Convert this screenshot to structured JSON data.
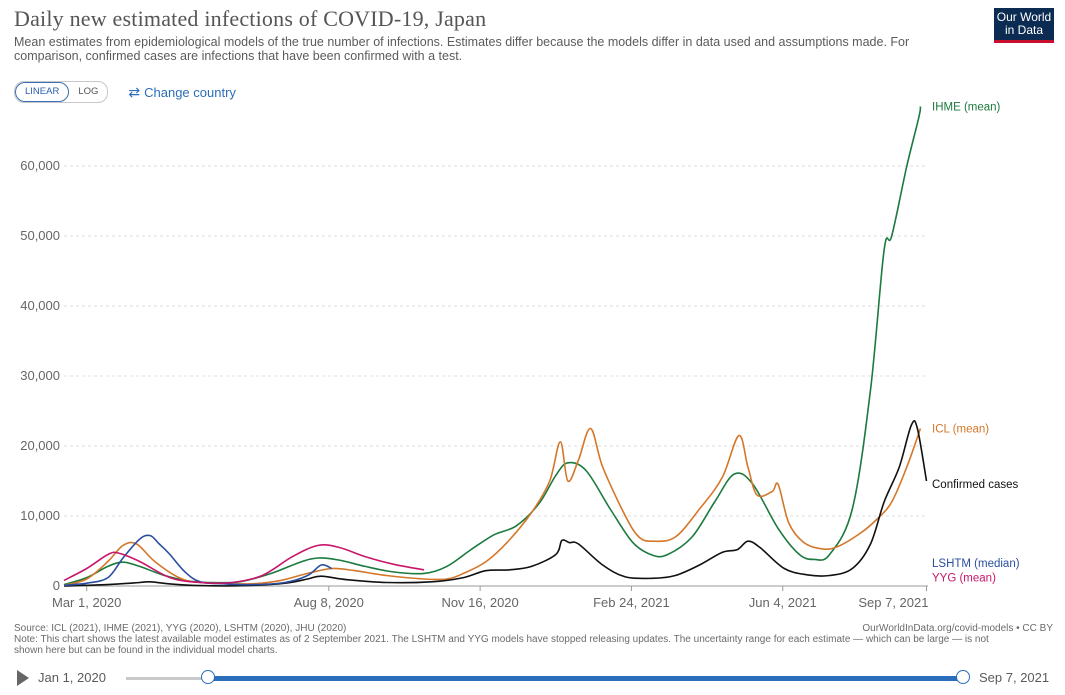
{
  "header": {
    "title": "Daily new estimated infections of COVID-19, Japan",
    "subtitle": "Mean estimates from epidemiological models of the true number of infections. Estimates differ because the models differ in data used and assumptions made. For comparison, confirmed cases are infections that have been confirmed with a test.",
    "logo_line1": "Our World",
    "logo_line2": "in Data"
  },
  "controls": {
    "linear_label": "LINEAR",
    "log_label": "LOG",
    "change_country_label": "Change country"
  },
  "chart_data": {
    "type": "line",
    "ylim": [
      0,
      68000
    ],
    "yticks": [
      0,
      10000,
      20000,
      30000,
      40000,
      50000,
      60000
    ],
    "ytick_labels": [
      "0",
      "10,000",
      "20,000",
      "30,000",
      "40,000",
      "50,000",
      "60,000"
    ],
    "xlim": [
      "2020-02-15",
      "2021-09-08"
    ],
    "xticks": [
      "2020-03-01",
      "2020-08-08",
      "2020-11-16",
      "2021-02-24",
      "2021-06-04",
      "2021-09-07"
    ],
    "xtick_labels": [
      "Mar 1, 2020",
      "Aug 8, 2020",
      "Nov 16, 2020",
      "Feb 24, 2021",
      "Jun 4, 2021",
      "Sep 7, 2021"
    ],
    "grid": true,
    "series": [
      {
        "name": "IHME (mean)",
        "color": "#1b7a3e",
        "points": [
          [
            "2020-02-15",
            200
          ],
          [
            "2020-03-01",
            1200
          ],
          [
            "2020-03-15",
            2800
          ],
          [
            "2020-03-25",
            3400
          ],
          [
            "2020-04-05",
            2800
          ],
          [
            "2020-04-20",
            1600
          ],
          [
            "2020-05-05",
            800
          ],
          [
            "2020-05-20",
            500
          ],
          [
            "2020-06-10",
            600
          ],
          [
            "2020-07-01",
            1800
          ],
          [
            "2020-07-20",
            3400
          ],
          [
            "2020-08-01",
            4000
          ],
          [
            "2020-08-15",
            3700
          ],
          [
            "2020-09-01",
            2800
          ],
          [
            "2020-09-20",
            2000
          ],
          [
            "2020-10-10",
            1800
          ],
          [
            "2020-10-25",
            2800
          ],
          [
            "2020-11-10",
            5200
          ],
          [
            "2020-11-25",
            7300
          ],
          [
            "2020-12-10",
            8600
          ],
          [
            "2020-12-25",
            11800
          ],
          [
            "2021-01-05",
            15800
          ],
          [
            "2021-01-13",
            17600
          ],
          [
            "2021-01-25",
            16500
          ],
          [
            "2021-02-10",
            11000
          ],
          [
            "2021-02-25",
            6200
          ],
          [
            "2021-03-10",
            4400
          ],
          [
            "2021-03-20",
            4500
          ],
          [
            "2021-04-05",
            7000
          ],
          [
            "2021-04-20",
            12000
          ],
          [
            "2021-05-03",
            16000
          ],
          [
            "2021-05-15",
            14600
          ],
          [
            "2021-06-01",
            8200
          ],
          [
            "2021-06-15",
            4500
          ],
          [
            "2021-06-25",
            3800
          ],
          [
            "2021-07-05",
            4500
          ],
          [
            "2021-07-20",
            11000
          ],
          [
            "2021-08-01",
            28000
          ],
          [
            "2021-08-10",
            48000
          ],
          [
            "2021-08-15",
            50000
          ],
          [
            "2021-08-25",
            60000
          ],
          [
            "2021-09-02",
            67000
          ],
          [
            "2021-09-03",
            68500
          ]
        ]
      },
      {
        "name": "ICL (mean)",
        "color": "#d4772a",
        "points": [
          [
            "2020-02-15",
            100
          ],
          [
            "2020-03-01",
            1000
          ],
          [
            "2020-03-15",
            3500
          ],
          [
            "2020-03-25",
            5800
          ],
          [
            "2020-04-03",
            6000
          ],
          [
            "2020-04-15",
            3500
          ],
          [
            "2020-05-01",
            1200
          ],
          [
            "2020-05-15",
            500
          ],
          [
            "2020-06-15",
            300
          ],
          [
            "2020-07-05",
            700
          ],
          [
            "2020-07-25",
            1800
          ],
          [
            "2020-08-10",
            2500
          ],
          [
            "2020-08-25",
            2200
          ],
          [
            "2020-09-15",
            1500
          ],
          [
            "2020-10-10",
            1000
          ],
          [
            "2020-10-25",
            1000
          ],
          [
            "2020-11-05",
            1800
          ],
          [
            "2020-11-20",
            3500
          ],
          [
            "2020-12-05",
            6500
          ],
          [
            "2020-12-20",
            10500
          ],
          [
            "2021-01-01",
            15000
          ],
          [
            "2021-01-08",
            20600
          ],
          [
            "2021-01-13",
            15000
          ],
          [
            "2021-01-20",
            18000
          ],
          [
            "2021-01-28",
            22500
          ],
          [
            "2021-02-05",
            17000
          ],
          [
            "2021-02-20",
            10000
          ],
          [
            "2021-03-01",
            7000
          ],
          [
            "2021-03-10",
            6400
          ],
          [
            "2021-03-25",
            7000
          ],
          [
            "2021-04-10",
            11000
          ],
          [
            "2021-04-25",
            15500
          ],
          [
            "2021-05-06",
            21500
          ],
          [
            "2021-05-12",
            17000
          ],
          [
            "2021-05-18",
            13000
          ],
          [
            "2021-05-28",
            13500
          ],
          [
            "2021-06-01",
            14500
          ],
          [
            "2021-06-08",
            9000
          ],
          [
            "2021-06-18",
            6200
          ],
          [
            "2021-06-30",
            5300
          ],
          [
            "2021-07-10",
            5600
          ],
          [
            "2021-07-25",
            7500
          ],
          [
            "2021-08-05",
            9500
          ],
          [
            "2021-08-15",
            12000
          ],
          [
            "2021-08-25",
            17000
          ],
          [
            "2021-09-03",
            22500
          ]
        ]
      },
      {
        "name": "Confirmed cases",
        "color": "#111111",
        "points": [
          [
            "2020-02-15",
            0
          ],
          [
            "2020-03-15",
            200
          ],
          [
            "2020-04-05",
            500
          ],
          [
            "2020-04-12",
            600
          ],
          [
            "2020-04-25",
            300
          ],
          [
            "2020-05-15",
            50
          ],
          [
            "2020-06-15",
            50
          ],
          [
            "2020-07-10",
            400
          ],
          [
            "2020-07-25",
            1000
          ],
          [
            "2020-08-03",
            1400
          ],
          [
            "2020-08-20",
            900
          ],
          [
            "2020-09-15",
            500
          ],
          [
            "2020-10-15",
            600
          ],
          [
            "2020-11-05",
            1200
          ],
          [
            "2020-11-20",
            2200
          ],
          [
            "2020-12-05",
            2300
          ],
          [
            "2020-12-20",
            2800
          ],
          [
            "2021-01-05",
            4500
          ],
          [
            "2021-01-09",
            6500
          ],
          [
            "2021-01-14",
            6200
          ],
          [
            "2021-01-20",
            6000
          ],
          [
            "2021-02-05",
            3000
          ],
          [
            "2021-02-20",
            1300
          ],
          [
            "2021-03-10",
            1100
          ],
          [
            "2021-03-25",
            1500
          ],
          [
            "2021-04-10",
            3000
          ],
          [
            "2021-04-25",
            4800
          ],
          [
            "2021-05-05",
            5200
          ],
          [
            "2021-05-12",
            6400
          ],
          [
            "2021-05-20",
            5500
          ],
          [
            "2021-06-05",
            2500
          ],
          [
            "2021-06-20",
            1600
          ],
          [
            "2021-07-05",
            1500
          ],
          [
            "2021-07-20",
            2500
          ],
          [
            "2021-08-01",
            6000
          ],
          [
            "2021-08-10",
            12000
          ],
          [
            "2021-08-20",
            17000
          ],
          [
            "2021-08-28",
            23000
          ],
          [
            "2021-09-01",
            22500
          ],
          [
            "2021-09-07",
            15000
          ]
        ]
      },
      {
        "name": "LSHTM (median)",
        "color": "#2a4ea0",
        "points": [
          [
            "2020-02-15",
            100
          ],
          [
            "2020-03-01",
            400
          ],
          [
            "2020-03-15",
            1200
          ],
          [
            "2020-03-25",
            4000
          ],
          [
            "2020-04-05",
            6700
          ],
          [
            "2020-04-12",
            7200
          ],
          [
            "2020-04-18",
            6000
          ],
          [
            "2020-04-25",
            4500
          ],
          [
            "2020-05-05",
            2000
          ],
          [
            "2020-05-15",
            600
          ],
          [
            "2020-06-01",
            300
          ],
          [
            "2020-06-20",
            200
          ],
          [
            "2020-07-10",
            500
          ],
          [
            "2020-07-25",
            1500
          ],
          [
            "2020-08-03",
            3000
          ],
          [
            "2020-08-10",
            2500
          ]
        ]
      },
      {
        "name": "YYG (mean)",
        "color": "#c8176b",
        "points": [
          [
            "2020-02-15",
            800
          ],
          [
            "2020-03-01",
            2500
          ],
          [
            "2020-03-15",
            4500
          ],
          [
            "2020-03-22",
            4700
          ],
          [
            "2020-04-05",
            3500
          ],
          [
            "2020-04-25",
            1200
          ],
          [
            "2020-05-15",
            500
          ],
          [
            "2020-06-05",
            500
          ],
          [
            "2020-06-25",
            1500
          ],
          [
            "2020-07-15",
            4200
          ],
          [
            "2020-08-01",
            5800
          ],
          [
            "2020-08-15",
            5500
          ],
          [
            "2020-09-01",
            4200
          ],
          [
            "2020-09-20",
            3100
          ],
          [
            "2020-10-10",
            2300
          ]
        ]
      }
    ],
    "labels": [
      "IHME (mean)",
      "ICL (mean)",
      "Confirmed cases",
      "LSHTM (median)",
      "YYG (mean)"
    ]
  },
  "footer": {
    "source": "Source: ICL (2021), IHME (2021), YYG (2020), LSHTM (2020), JHU (2020)",
    "note": "Note: This chart shows the latest available model estimates as of 2 September 2021. The LSHTM and YYG models have stopped releasing updates. The uncertainty range for each estimate — which can be large — is not shown here but can be found in the individual model charts.",
    "credit": "OurWorldInData.org/covid-models • CC BY"
  },
  "timeline": {
    "start_label": "Jan 1, 2020",
    "end_label": "Sep 7, 2021"
  }
}
